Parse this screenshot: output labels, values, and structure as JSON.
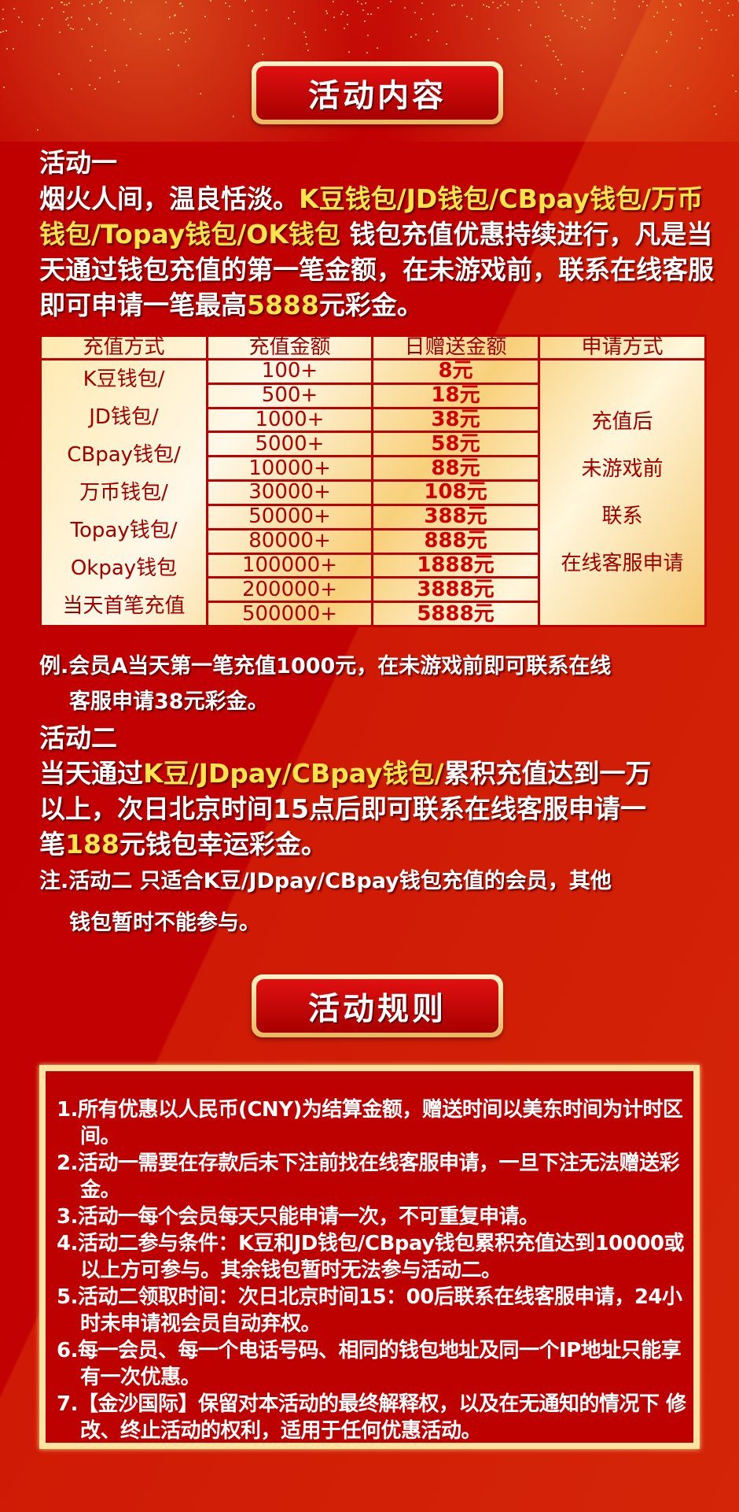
{
  "section1_title": "活动内容",
  "section2_title": "活动规则",
  "activity1": {
    "heading": "活动一",
    "intro": "烟火人间，温良恬淡。",
    "wallets": "K豆钱包/JD钱包/CBpay钱包/万币钱包/Topay钱包/OK钱包",
    "text": "钱包充值优惠持续进行，凡是当天通过钱包充值的第一笔金额，在未游戏前，联系在线客服即可申请一笔最高",
    "max_amount": "5888",
    "text_end": "元彩金。"
  },
  "table": {
    "headers": [
      "充值方式",
      "充值金额",
      "日赠送金额",
      "申请方式"
    ],
    "methods": [
      "K豆钱包/",
      "JD钱包/",
      "CBpay钱包/",
      "万币钱包/",
      "Topay钱包/",
      "Okpay钱包",
      "当天首笔充值"
    ],
    "rows": [
      {
        "amount": "100+",
        "bonus": "8元"
      },
      {
        "amount": "500+",
        "bonus": "18元"
      },
      {
        "amount": "1000+",
        "bonus": "38元"
      },
      {
        "amount": "5000+",
        "bonus": "58元"
      },
      {
        "amount": "10000+",
        "bonus": "88元"
      },
      {
        "amount": "30000+",
        "bonus": "108元"
      },
      {
        "amount": "50000+",
        "bonus": "388元"
      },
      {
        "amount": "80000+",
        "bonus": "888元"
      },
      {
        "amount": "100000+",
        "bonus": "1888元"
      },
      {
        "amount": "200000+",
        "bonus": "3888元"
      },
      {
        "amount": "500000+",
        "bonus": "5888元"
      }
    ],
    "apply": [
      "充值后",
      "未游戏前",
      "联系",
      "在线客服申请"
    ]
  },
  "example": [
    "例.会员A当天第一笔充值1000元，在未游戏前即可联系在线",
    "客服申请38元彩金。"
  ],
  "activity2": {
    "heading": "活动二",
    "pre": "当天通过",
    "wallets": "K豆/JDpay/CBpay钱包/",
    "text1": "累积充值达到一万",
    "line2": "以上，次日北京时间15点后即可联系在线客服申请一",
    "pre3": "笔",
    "amount": "188",
    "text3": "元钱包幸运彩金。",
    "note": [
      "注.活动二 只适合K豆/JDpay/CBpay钱包充值的会员，其他",
      "钱包暂时不能参与。"
    ]
  },
  "rules": [
    "1.所有优惠以人民币(CNY)为结算金额，赠送时间以美东时间为计时区间。",
    "2.活动一需要在存款后未下注前找在线客服申请，一旦下注无法赠送彩金。",
    "3.活动一每个会员每天只能申请一次，不可重复申请。",
    "4.活动二参与条件：K豆和JD钱包/CBpay钱包累积充值达到10000或以上方可参与。其余钱包暂时无法参与活动二。",
    "5.活动二领取时间：次日北京时间15：00后联系在线客服申请，24小时未申请视会员自动弃权。",
    "6.每一会员、每一个电话号码、相同的钱包地址及同一个IP地址只能享有一次优惠。",
    "7.【金沙国际】保留对本活动的最终解释权，以及在无通知的情况下 修改、终止活动的权利，适用于任何优惠活动。"
  ]
}
